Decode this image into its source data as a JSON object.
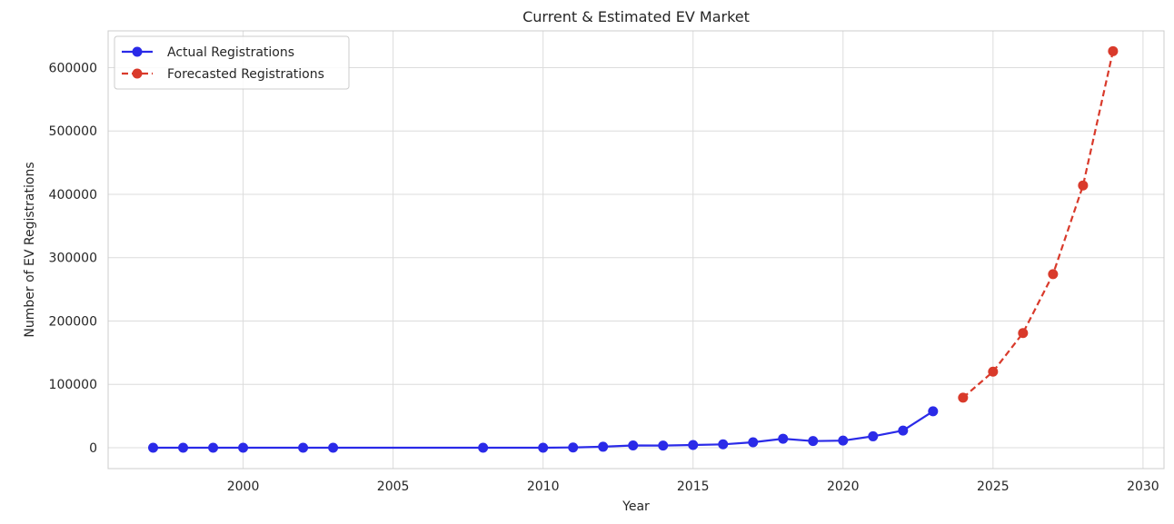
{
  "chart_data": {
    "type": "line",
    "title": "Current & Estimated EV Market",
    "xlabel": "Year",
    "ylabel": "Number of EV Registrations",
    "xlim": [
      1995.5,
      2030.7
    ],
    "ylim": [
      -33000,
      658000
    ],
    "xticks": [
      2000,
      2005,
      2010,
      2015,
      2020,
      2025,
      2030
    ],
    "xtick_labels": [
      "2000",
      "2005",
      "2010",
      "2015",
      "2020",
      "2025",
      "2030"
    ],
    "yticks": [
      0,
      100000,
      200000,
      300000,
      400000,
      500000,
      600000
    ],
    "ytick_labels": [
      "0",
      "100000",
      "200000",
      "300000",
      "400000",
      "500000",
      "600000"
    ],
    "grid": true,
    "legend_position": "top-left",
    "series": [
      {
        "name": "Actual Registrations",
        "color": "#2a2ae8",
        "line_style": "solid",
        "marker": "circle",
        "x": [
          1997,
          1998,
          1999,
          2000,
          2002,
          2003,
          2008,
          2010,
          2011,
          2012,
          2013,
          2014,
          2015,
          2016,
          2017,
          2018,
          2019,
          2020,
          2021,
          2022,
          2023
        ],
        "y": [
          0,
          0,
          0,
          0,
          0,
          0,
          0,
          0,
          400,
          1500,
          3500,
          3400,
          4300,
          5300,
          8600,
          14200,
          10500,
          11200,
          18000,
          27000,
          57500
        ]
      },
      {
        "name": "Forecasted Registrations",
        "color": "#d93a2b",
        "line_style": "dashed",
        "marker": "circle",
        "x": [
          2024,
          2025,
          2026,
          2027,
          2028,
          2029
        ],
        "y": [
          79000,
          120000,
          181000,
          274000,
          414000,
          626000
        ]
      }
    ]
  }
}
